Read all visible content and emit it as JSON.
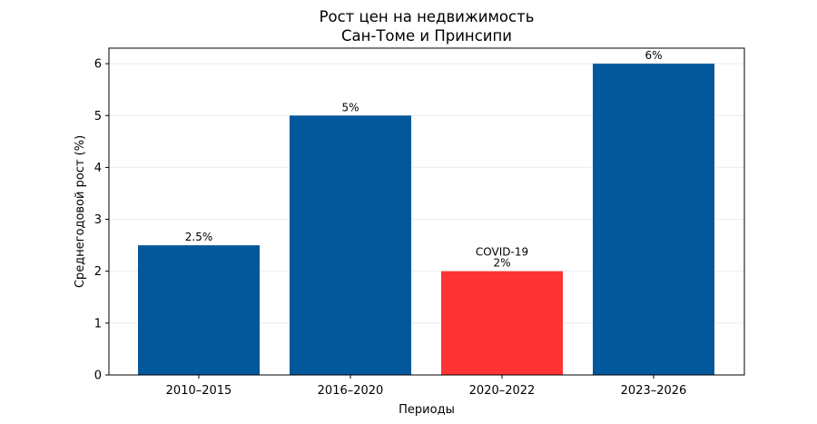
{
  "chart_data": {
    "type": "bar",
    "title": "Рост цен на недвижимость\nСан-Томе и Принсипи",
    "title_lines": [
      "Рост цен на недвижимость",
      "Сан-Томе и Принсипи"
    ],
    "xlabel": "Периоды",
    "ylabel": "Среднегодовой рост (%)",
    "categories": [
      "2010–2015",
      "2016–2020",
      "2020–2022",
      "2023–2026"
    ],
    "values": [
      2.5,
      5,
      2,
      6
    ],
    "value_labels": [
      "2.5%",
      "5%",
      "2%",
      "6%"
    ],
    "annotations": [
      {
        "category": "2020–2022",
        "text": "COVID-19"
      }
    ],
    "colors": [
      "#03579b",
      "#03579b",
      "#ff3334",
      "#03579b"
    ],
    "yticks": [
      0,
      1,
      2,
      3,
      4,
      5,
      6
    ],
    "ylim": [
      0,
      6.3
    ],
    "grid": "y",
    "legend": "none"
  }
}
